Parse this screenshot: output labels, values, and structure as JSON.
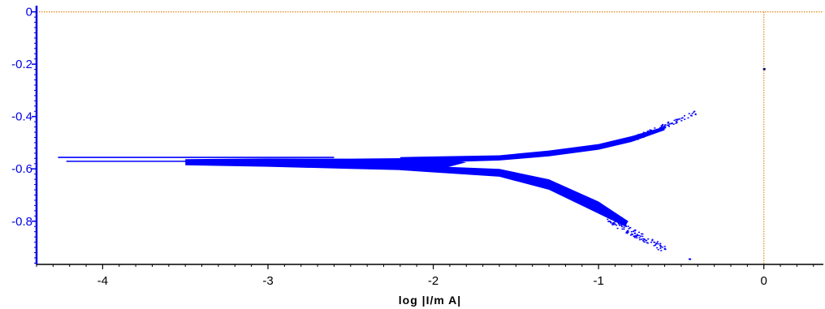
{
  "chart_data": {
    "type": "scatter",
    "title": "",
    "xlabel": "log |I/m A|",
    "ylabel": "",
    "xlim": [
      -4.4,
      0.36
    ],
    "ylim": [
      -0.965,
      0.005
    ],
    "x_ticks": [
      -4,
      -3,
      -2,
      -1,
      0
    ],
    "x_tick_labels": [
      "-4",
      "-3",
      "-2",
      "-1",
      "0"
    ],
    "y_ticks": [
      0,
      -0.2,
      -0.4,
      -0.6,
      -0.8
    ],
    "y_tick_labels": [
      "0",
      "-0.2",
      "-0.4",
      "-0.6",
      "-0.8"
    ],
    "grid": false,
    "reference_lines": {
      "color": "#e08a1e",
      "style": "dotted",
      "x": 0,
      "y": 0
    },
    "series": [
      {
        "color": "#0000ff",
        "points": [
          {
            "x": -4.27,
            "y": -0.556
          },
          {
            "x": -4.22,
            "y": -0.571
          },
          {
            "x": -3.4,
            "y": -0.583
          },
          {
            "x": -3.0,
            "y": -0.575
          },
          {
            "x": -2.5,
            "y": -0.578
          },
          {
            "x": -2.0,
            "y": -0.575
          },
          {
            "x": -1.6,
            "y": -0.555
          },
          {
            "x": -1.3,
            "y": -0.54
          },
          {
            "x": -1.0,
            "y": -0.515
          },
          {
            "x": -0.8,
            "y": -0.485
          },
          {
            "x": -0.6,
            "y": -0.445
          },
          {
            "x": -0.4,
            "y": -0.38
          },
          {
            "x": -1.6,
            "y": -0.615
          },
          {
            "x": -1.3,
            "y": -0.66
          },
          {
            "x": -1.0,
            "y": -0.75
          },
          {
            "x": -0.8,
            "y": -0.83
          },
          {
            "x": -0.6,
            "y": -0.905
          },
          {
            "x": -0.45,
            "y": -0.945
          },
          {
            "x": 0.0,
            "y": -0.218
          }
        ]
      }
    ]
  }
}
